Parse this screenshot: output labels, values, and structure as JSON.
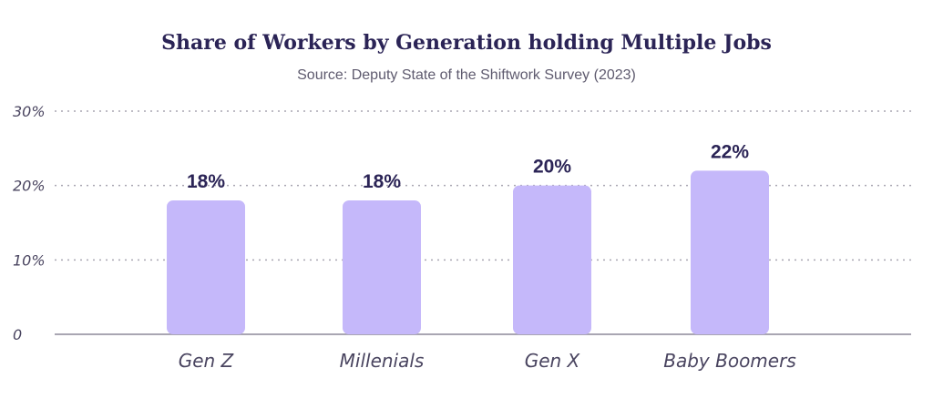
{
  "chart_data": {
    "type": "bar",
    "title": "Share of Workers by Generation holding Multiple Jobs",
    "subtitle": "Source: Deputy State of the Shiftwork Survey (2023)",
    "xlabel": "",
    "ylabel": "",
    "categories": [
      "Gen Z",
      "Millenials",
      "Gen X",
      "Baby Boomers"
    ],
    "values": [
      18,
      18,
      20,
      22
    ],
    "data_labels": [
      "18%",
      "18%",
      "20%",
      "22%"
    ],
    "ylim": [
      0,
      30
    ],
    "yticks": [
      0,
      10,
      20,
      30
    ],
    "ytick_labels": [
      "0",
      "10%",
      "20%",
      "30%"
    ],
    "grid": true,
    "bar_color": "#c5b8fa",
    "text_color": "#2b2456"
  }
}
